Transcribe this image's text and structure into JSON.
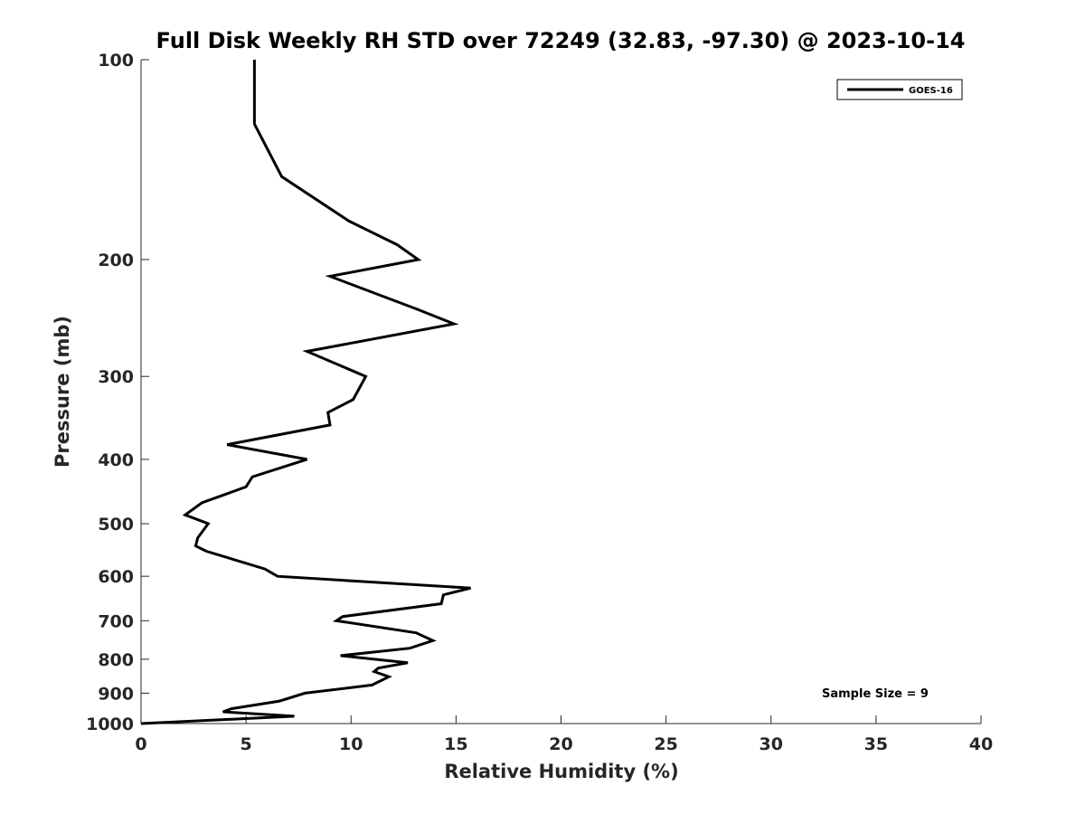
{
  "chart_data": {
    "type": "line",
    "title": "Full Disk Weekly RH STD over 72249 (32.83, -97.30) @ 2023-10-14",
    "xlabel": "Relative Humidity (%)",
    "ylabel": "Pressure (mb)",
    "xlim": [
      0,
      40
    ],
    "ylim": [
      100,
      1000
    ],
    "y_scale": "log",
    "y_reversed": true,
    "x_ticks": [
      0,
      5,
      10,
      15,
      20,
      25,
      30,
      35,
      40
    ],
    "y_ticks": [
      100,
      200,
      300,
      400,
      500,
      600,
      700,
      800,
      900,
      1000
    ],
    "legend": {
      "location": "top-right",
      "entries": [
        "GOES-16"
      ]
    },
    "annotation": "Sample Size = 9",
    "series": [
      {
        "name": "GOES-16",
        "color": "#000000",
        "points": [
          [
            5.4,
            100
          ],
          [
            5.4,
            125
          ],
          [
            6.7,
            150
          ],
          [
            9.9,
            175
          ],
          [
            12.2,
            190
          ],
          [
            13.2,
            200
          ],
          [
            9.0,
            212
          ],
          [
            13.2,
            238
          ],
          [
            14.9,
            250
          ],
          [
            7.9,
            275
          ],
          [
            10.7,
            300
          ],
          [
            10.1,
            325
          ],
          [
            8.9,
            340
          ],
          [
            9.0,
            355
          ],
          [
            4.1,
            380
          ],
          [
            7.9,
            400
          ],
          [
            5.3,
            425
          ],
          [
            5.0,
            440
          ],
          [
            2.9,
            465
          ],
          [
            2.1,
            485
          ],
          [
            3.2,
            500
          ],
          [
            2.7,
            525
          ],
          [
            2.6,
            540
          ],
          [
            3.1,
            550
          ],
          [
            5.9,
            585
          ],
          [
            6.5,
            600
          ],
          [
            15.7,
            625
          ],
          [
            14.4,
            640
          ],
          [
            14.3,
            660
          ],
          [
            9.6,
            690
          ],
          [
            9.3,
            700
          ],
          [
            13.1,
            730
          ],
          [
            13.9,
            750
          ],
          [
            12.8,
            770
          ],
          [
            9.5,
            790
          ],
          [
            12.7,
            810
          ],
          [
            11.3,
            825
          ],
          [
            11.1,
            835
          ],
          [
            11.8,
            850
          ],
          [
            11.0,
            875
          ],
          [
            7.8,
            900
          ],
          [
            6.6,
            925
          ],
          [
            4.3,
            950
          ],
          [
            3.9,
            960
          ],
          [
            7.3,
            975
          ],
          [
            0.0,
            1000
          ]
        ]
      }
    ]
  }
}
